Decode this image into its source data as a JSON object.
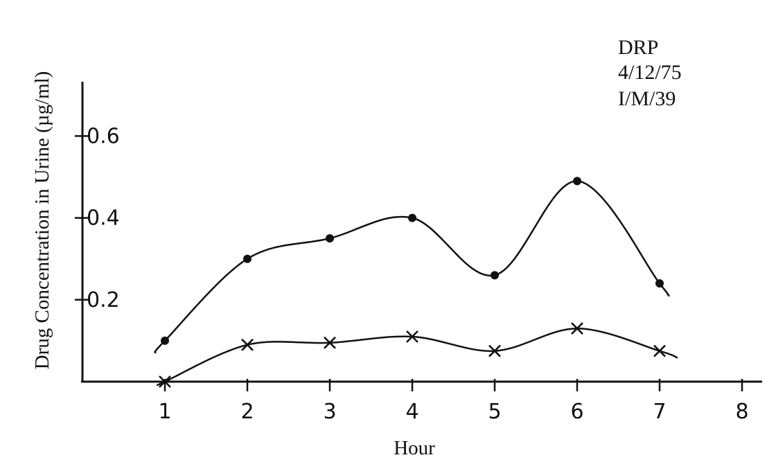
{
  "chart_data": {
    "type": "line",
    "title": "",
    "xlabel": "Hour",
    "ylabel": "Drug Concentration in Urine (µg/ml)",
    "x_ticks": [
      "1",
      "2",
      "3",
      "4",
      "5",
      "6",
      "7",
      "8"
    ],
    "y_ticks": [
      "0.2",
      "0.4",
      "0.6"
    ],
    "xlim": [
      0,
      8
    ],
    "ylim": [
      0,
      0.74
    ],
    "grid": false,
    "annotation": [
      "DRP",
      "4/12/75",
      "I/M/39"
    ],
    "series": [
      {
        "marker": "dot",
        "x": [
          1,
          2,
          3,
          4,
          5,
          6,
          7
        ],
        "y": [
          0.1,
          0.3,
          0.35,
          0.4,
          0.26,
          0.49,
          0.24
        ]
      },
      {
        "marker": "cross",
        "x": [
          1,
          2,
          3,
          4,
          5,
          6,
          7
        ],
        "y": [
          0.0,
          0.09,
          0.095,
          0.11,
          0.075,
          0.13,
          0.075
        ]
      }
    ]
  }
}
